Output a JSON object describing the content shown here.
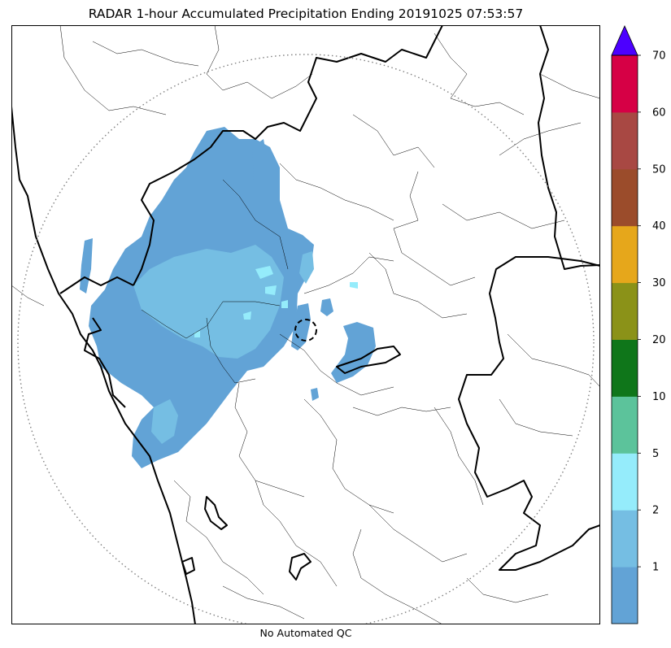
{
  "title": "RADAR 1-hour Accumulated Precipitation Ending 20191025 07:53:57",
  "footer": "No Automated QC",
  "colorbar": {
    "ticks": [
      "1",
      "2",
      "5",
      "10",
      "20",
      "30",
      "40",
      "50",
      "60",
      "70"
    ],
    "levels": [
      {
        "from": 0,
        "to": 1,
        "color": "#62a3d6"
      },
      {
        "from": 1,
        "to": 2,
        "color": "#75bee3"
      },
      {
        "from": 2,
        "to": 5,
        "color": "#95ecfb"
      },
      {
        "from": 5,
        "to": 10,
        "color": "#5cc39b"
      },
      {
        "from": 10,
        "to": 20,
        "color": "#0f761a"
      },
      {
        "from": 20,
        "to": 30,
        "color": "#8b9218"
      },
      {
        "from": 30,
        "to": 40,
        "color": "#e6a71b"
      },
      {
        "from": 40,
        "to": 50,
        "color": "#9b4c2b"
      },
      {
        "from": 50,
        "to": 60,
        "color": "#a84843"
      },
      {
        "from": 60,
        "to": 70,
        "color": "#d60045"
      }
    ],
    "extend_color": "#4c00ff"
  },
  "map": {
    "precip_colors": {
      "light": "#62a3d6",
      "medium": "#75bee3",
      "heavy": "#95ecfb"
    },
    "boundary_color": "#000000",
    "range_ring_color": "#808080"
  }
}
